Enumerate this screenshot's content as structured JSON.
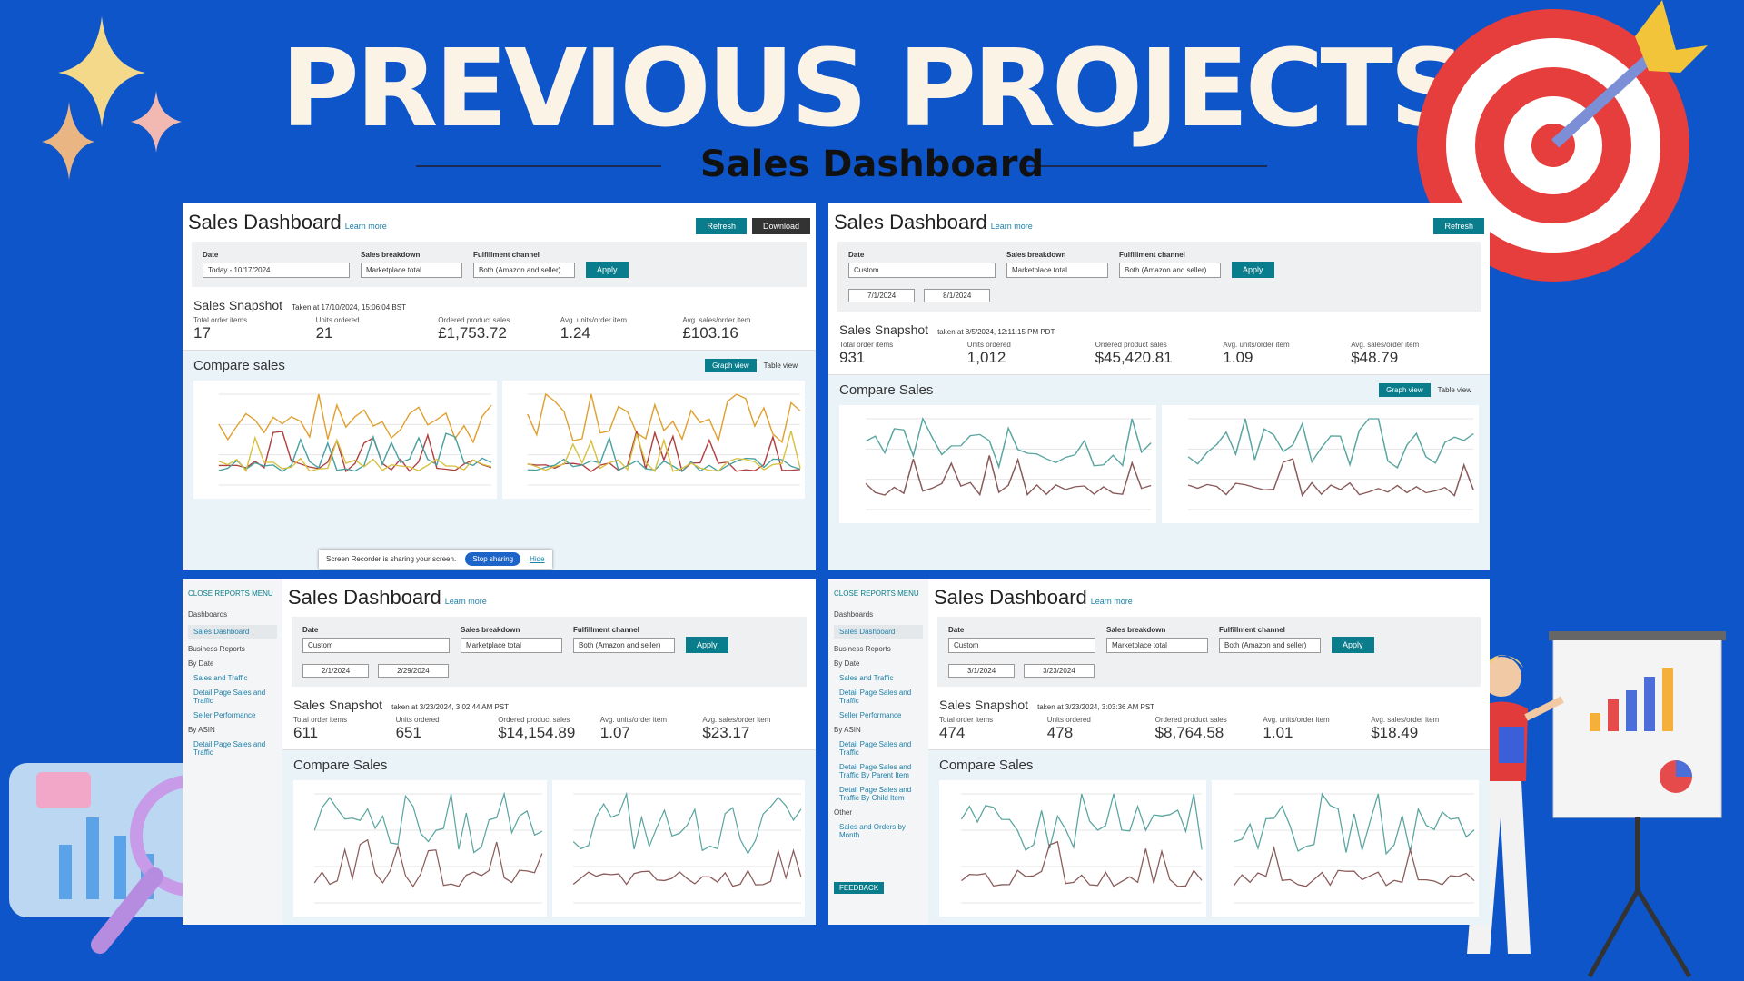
{
  "header": {
    "title": "PREVIOUS PROJECTS",
    "subtitle": "Sales Dashboard"
  },
  "panels": [
    {
      "title": "Sales Dashboard",
      "learn_more": "Learn more",
      "buttons": [
        "Refresh",
        "Download"
      ],
      "filters": [
        {
          "label": "Date",
          "value": "Today - 10/17/2024"
        },
        {
          "label": "Sales breakdown",
          "value": "Marketplace total"
        },
        {
          "label": "Fulfillment channel",
          "value": "Both (Amazon and seller)"
        }
      ],
      "apply": "Apply",
      "snapshot_title": "Sales Snapshot",
      "snapshot_time": "Taken at 17/10/2024, 15:06:04 BST",
      "metrics": [
        {
          "label": "Total order items",
          "value": "17"
        },
        {
          "label": "Units ordered",
          "value": "21"
        },
        {
          "label": "Ordered product sales",
          "value": "£1,753.72"
        },
        {
          "label": "Avg. units/order item",
          "value": "1.24"
        },
        {
          "label": "Avg. sales/order item",
          "value": "£103.16"
        }
      ],
      "compare_title": "Compare sales",
      "views": [
        "Graph view",
        "Table view"
      ],
      "notice": {
        "text": "Screen Recorder is sharing your screen.",
        "stop": "Stop sharing",
        "hide": "Hide"
      }
    },
    {
      "title": "Sales Dashboard",
      "learn_more": "Learn more",
      "buttons": [
        "Refresh"
      ],
      "filters": [
        {
          "label": "Date",
          "value": "Custom"
        },
        {
          "label": "Sales breakdown",
          "value": "Marketplace total"
        },
        {
          "label": "Fulfillment channel",
          "value": "Both (Amazon and seller)"
        }
      ],
      "dates": [
        "7/1/2024",
        "8/1/2024"
      ],
      "apply": "Apply",
      "snapshot_title": "Sales Snapshot",
      "snapshot_time": "taken at 8/5/2024, 12:11:15 PM PDT",
      "metrics": [
        {
          "label": "Total order items",
          "value": "931"
        },
        {
          "label": "Units ordered",
          "value": "1,012"
        },
        {
          "label": "Ordered product sales",
          "value": "$45,420.81"
        },
        {
          "label": "Avg. units/order item",
          "value": "1.09"
        },
        {
          "label": "Avg. sales/order item",
          "value": "$48.79"
        }
      ],
      "compare_title": "Compare Sales",
      "views": [
        "Graph view",
        "Table view"
      ]
    },
    {
      "sidebar": {
        "close": "CLOSE REPORTS MENU",
        "items": [
          "Dashboards",
          "Sales Dashboard",
          "Business Reports",
          "By Date",
          "Sales and Traffic",
          "Detail Page Sales and Traffic",
          "Seller Performance",
          "By ASIN",
          "Detail Page Sales and Traffic"
        ]
      },
      "title": "Sales Dashboard",
      "learn_more": "Learn more",
      "filters": [
        {
          "label": "Date",
          "value": "Custom"
        },
        {
          "label": "Sales breakdown",
          "value": "Marketplace total"
        },
        {
          "label": "Fulfillment channel",
          "value": "Both (Amazon and seller)"
        }
      ],
      "dates": [
        "2/1/2024",
        "2/29/2024"
      ],
      "apply": "Apply",
      "snapshot_title": "Sales Snapshot",
      "snapshot_time": "taken at 3/23/2024, 3:02:44 AM PST",
      "metrics": [
        {
          "label": "Total order items",
          "value": "611"
        },
        {
          "label": "Units ordered",
          "value": "651"
        },
        {
          "label": "Ordered product sales",
          "value": "$14,154.89"
        },
        {
          "label": "Avg. units/order item",
          "value": "1.07"
        },
        {
          "label": "Avg. sales/order item",
          "value": "$23.17"
        }
      ],
      "compare_title": "Compare Sales"
    },
    {
      "sidebar": {
        "close": "CLOSE REPORTS MENU",
        "items": [
          "Dashboards",
          "Sales Dashboard",
          "Business Reports",
          "By Date",
          "Sales and Traffic",
          "Detail Page Sales and Traffic",
          "Seller Performance",
          "By ASIN",
          "Detail Page Sales and Traffic",
          "Detail Page Sales and Traffic By Parent Item",
          "Detail Page Sales and Traffic By Child Item",
          "Other",
          "Sales and Orders by Month"
        ],
        "feedback": "FEEDBACK"
      },
      "title": "Sales Dashboard",
      "learn_more": "Learn more",
      "filters": [
        {
          "label": "Date",
          "value": "Custom"
        },
        {
          "label": "Sales breakdown",
          "value": "Marketplace total"
        },
        {
          "label": "Fulfillment channel",
          "value": "Both (Amazon and seller)"
        }
      ],
      "dates": [
        "3/1/2024",
        "3/23/2024"
      ],
      "apply": "Apply",
      "snapshot_title": "Sales Snapshot",
      "snapshot_time": "taken at 3/23/2024, 3:03:36 AM PST",
      "metrics": [
        {
          "label": "Total order items",
          "value": "474"
        },
        {
          "label": "Units ordered",
          "value": "478"
        },
        {
          "label": "Ordered product sales",
          "value": "$8,764.58"
        },
        {
          "label": "Avg. units/order item",
          "value": "1.01"
        },
        {
          "label": "Avg. sales/order item",
          "value": "$18.49"
        }
      ],
      "compare_title": "Compare Sales"
    }
  ]
}
